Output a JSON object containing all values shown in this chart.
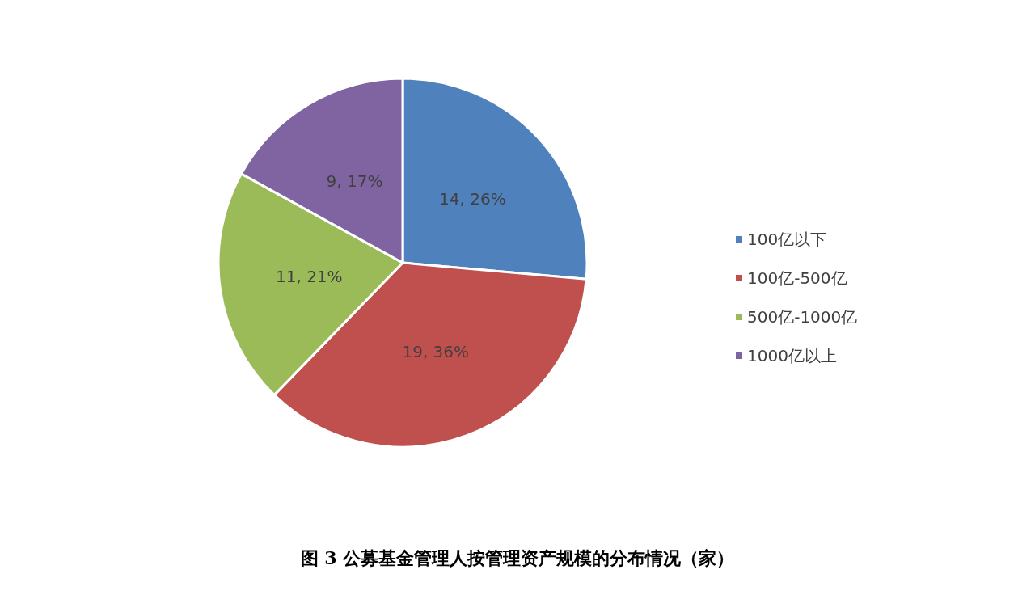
{
  "chart_data": {
    "type": "pie",
    "title": "图 3 公募基金管理人按管理资产规模的分布情况（家）",
    "categories": [
      "100亿以下",
      "100亿-500亿",
      "500亿-1000亿",
      "1000亿以上"
    ],
    "values": [
      14,
      19,
      11,
      9
    ],
    "colors": [
      "#4f81bd",
      "#c0504d",
      "#9bbb59",
      "#8064a2"
    ],
    "value_labels": [
      "14, 26%",
      "19, 36%",
      "11, 21%",
      "9, 17%"
    ],
    "legend": "right"
  }
}
